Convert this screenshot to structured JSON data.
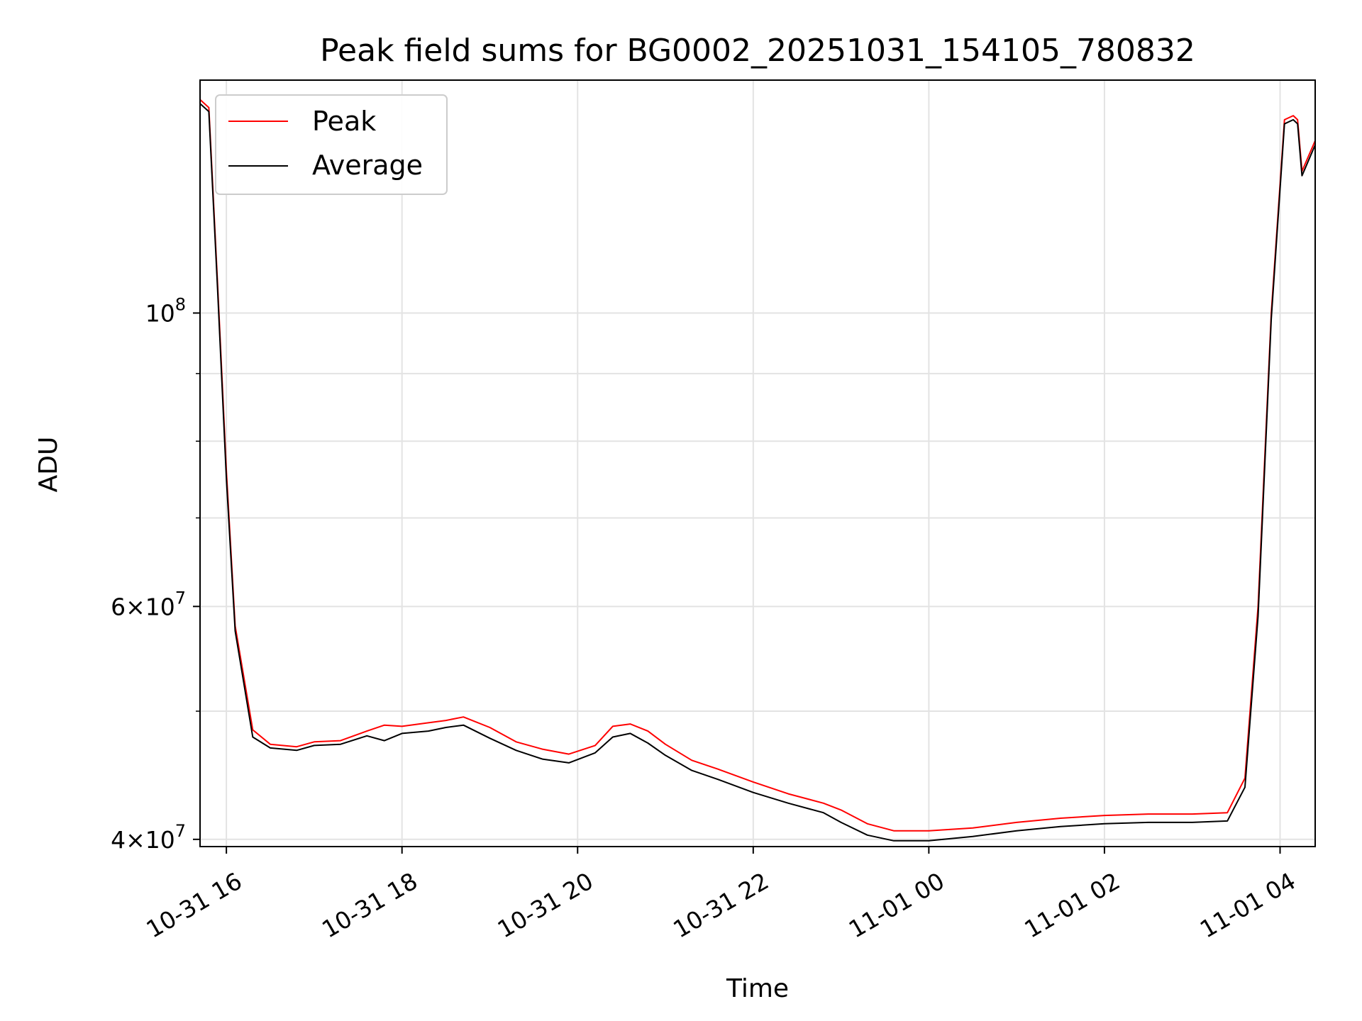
{
  "chart_data": {
    "type": "line",
    "title": "Peak field sums for BG0002_20251031_154105_780832",
    "xlabel": "Time",
    "ylabel": "ADU",
    "yscale": "log",
    "grid": true,
    "legend_position": "upper-left",
    "x_unit": "hours since 2025-10-31 00:00",
    "xlim": [
      15.7,
      28.4
    ],
    "ylim": [
      39500000,
      150000000
    ],
    "x_ticks": [
      {
        "value": 16,
        "label": "10-31 16"
      },
      {
        "value": 18,
        "label": "10-31 18"
      },
      {
        "value": 20,
        "label": "10-31 20"
      },
      {
        "value": 22,
        "label": "10-31 22"
      },
      {
        "value": 24,
        "label": "11-01 00"
      },
      {
        "value": 26,
        "label": "11-01 02"
      },
      {
        "value": 28,
        "label": "11-01 04"
      }
    ],
    "y_ticks_major": [
      {
        "value": 40000000,
        "base": "4",
        "exp": "7"
      },
      {
        "value": 60000000,
        "base": "6",
        "exp": "7"
      },
      {
        "value": 100000000,
        "base": "10",
        "exp": "8"
      }
    ],
    "y_ticks_minor": [
      50000000,
      70000000,
      80000000,
      90000000
    ],
    "series": [
      {
        "name": "Peak",
        "color": "#ff0000",
        "x": [
          15.7,
          15.8,
          15.9,
          16.0,
          16.1,
          16.3,
          16.5,
          16.8,
          17.0,
          17.3,
          17.6,
          17.8,
          18.0,
          18.3,
          18.5,
          18.7,
          19.0,
          19.3,
          19.6,
          19.9,
          20.2,
          20.4,
          20.6,
          20.8,
          21.0,
          21.3,
          21.6,
          22.0,
          22.4,
          22.8,
          23.0,
          23.3,
          23.6,
          24.0,
          24.5,
          25.0,
          25.5,
          26.0,
          26.5,
          27.0,
          27.4,
          27.6,
          27.75,
          27.9,
          28.05,
          28.15,
          28.2,
          28.25,
          28.4
        ],
        "values": [
          145000000,
          143000000,
          105000000,
          76000000,
          58000000,
          48400000,
          47200000,
          47000000,
          47400000,
          47500000,
          48300000,
          48800000,
          48700000,
          49000000,
          49200000,
          49500000,
          48600000,
          47400000,
          46800000,
          46400000,
          47100000,
          48700000,
          48900000,
          48300000,
          47200000,
          45900000,
          45200000,
          44200000,
          43300000,
          42600000,
          42100000,
          41100000,
          40600000,
          40600000,
          40800000,
          41200000,
          41500000,
          41700000,
          41800000,
          41800000,
          41900000,
          44500000,
          60000000,
          100000000,
          140000000,
          141000000,
          140000000,
          128000000,
          135000000
        ]
      },
      {
        "name": "Average",
        "color": "#000000",
        "x": [
          15.7,
          15.8,
          15.9,
          16.0,
          16.1,
          16.3,
          16.5,
          16.8,
          17.0,
          17.3,
          17.6,
          17.8,
          18.0,
          18.3,
          18.5,
          18.7,
          19.0,
          19.3,
          19.6,
          19.9,
          20.2,
          20.4,
          20.6,
          20.8,
          21.0,
          21.3,
          21.6,
          22.0,
          22.4,
          22.8,
          23.0,
          23.3,
          23.6,
          24.0,
          24.5,
          25.0,
          25.5,
          26.0,
          26.5,
          27.0,
          27.4,
          27.6,
          27.75,
          27.9,
          28.05,
          28.15,
          28.2,
          28.25,
          28.4
        ],
        "values": [
          144000000,
          142000000,
          104000000,
          75000000,
          57500000,
          47800000,
          46900000,
          46700000,
          47100000,
          47200000,
          47900000,
          47500000,
          48100000,
          48300000,
          48600000,
          48800000,
          47700000,
          46700000,
          46000000,
          45700000,
          46500000,
          47800000,
          48100000,
          47300000,
          46300000,
          45100000,
          44400000,
          43400000,
          42600000,
          41900000,
          41200000,
          40300000,
          39900000,
          39900000,
          40200000,
          40600000,
          40900000,
          41100000,
          41200000,
          41200000,
          41300000,
          43800000,
          59000000,
          99000000,
          139000000,
          140000000,
          139000000,
          127000000,
          134000000
        ]
      }
    ]
  }
}
